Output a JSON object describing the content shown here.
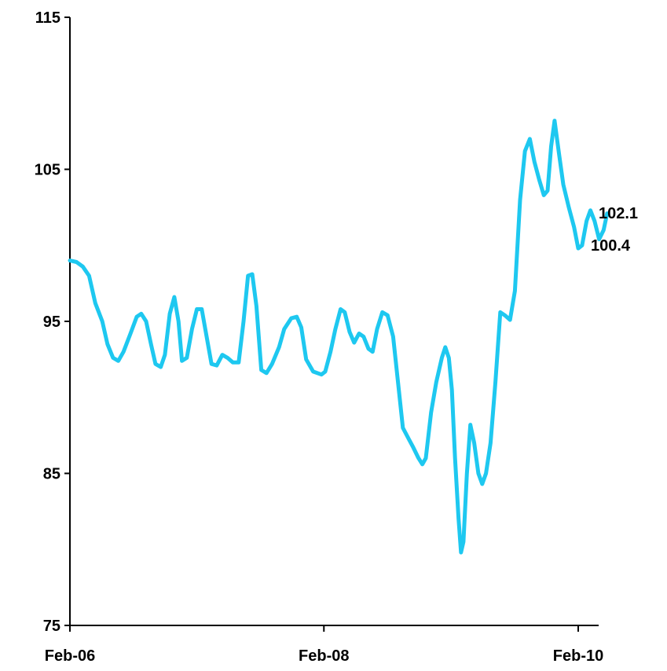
{
  "chart_data": {
    "type": "line",
    "title": "",
    "xlabel": "",
    "ylabel": "",
    "ylim": [
      75,
      115
    ],
    "xlim": [
      "2006-02",
      "2010-02"
    ],
    "y_ticks": [
      "115",
      "105",
      "95",
      "85",
      "75"
    ],
    "x_ticks": [
      "Feb-06",
      "Feb-08",
      "Feb-10"
    ],
    "grid": false,
    "legend": "none",
    "series_color": "#1EC8F0",
    "series": [
      {
        "values": [
          [
            "2006-02-01",
            99.0
          ],
          [
            "2006-02-20",
            98.9
          ],
          [
            "2006-03-10",
            98.6
          ],
          [
            "2006-03-28",
            98.0
          ],
          [
            "2006-04-15",
            96.2
          ],
          [
            "2006-05-05",
            95.0
          ],
          [
            "2006-05-20",
            93.5
          ],
          [
            "2006-06-05",
            92.6
          ],
          [
            "2006-06-20",
            92.4
          ],
          [
            "2006-07-05",
            93.0
          ],
          [
            "2006-07-25",
            94.2
          ],
          [
            "2006-08-12",
            95.3
          ],
          [
            "2006-08-25",
            95.5
          ],
          [
            "2006-09-08",
            95.0
          ],
          [
            "2006-09-22",
            93.5
          ],
          [
            "2006-10-05",
            92.2
          ],
          [
            "2006-10-20",
            92.0
          ],
          [
            "2006-11-01",
            92.8
          ],
          [
            "2006-11-15",
            95.5
          ],
          [
            "2006-11-28",
            96.6
          ],
          [
            "2006-12-10",
            95.0
          ],
          [
            "2006-12-20",
            92.4
          ],
          [
            "2007-01-03",
            92.6
          ],
          [
            "2007-01-18",
            94.5
          ],
          [
            "2007-02-01",
            95.8
          ],
          [
            "2007-02-15",
            95.8
          ],
          [
            "2007-03-01",
            94.0
          ],
          [
            "2007-03-15",
            92.2
          ],
          [
            "2007-03-30",
            92.1
          ],
          [
            "2007-04-15",
            92.8
          ],
          [
            "2007-04-30",
            92.6
          ],
          [
            "2007-05-15",
            92.3
          ],
          [
            "2007-06-01",
            92.3
          ],
          [
            "2007-06-15",
            95.0
          ],
          [
            "2007-06-28",
            98.0
          ],
          [
            "2007-07-10",
            98.1
          ],
          [
            "2007-07-22",
            96.0
          ],
          [
            "2007-08-05",
            91.8
          ],
          [
            "2007-08-20",
            91.6
          ],
          [
            "2007-09-05",
            92.2
          ],
          [
            "2007-09-25",
            93.3
          ],
          [
            "2007-10-10",
            94.5
          ],
          [
            "2007-10-30",
            95.2
          ],
          [
            "2007-11-15",
            95.3
          ],
          [
            "2007-11-28",
            94.6
          ],
          [
            "2007-12-12",
            92.5
          ],
          [
            "2008-01-01",
            91.7
          ],
          [
            "2008-01-25",
            91.5
          ],
          [
            "2008-02-05",
            91.7
          ],
          [
            "2008-02-20",
            93.0
          ],
          [
            "2008-03-05",
            94.5
          ],
          [
            "2008-03-20",
            95.8
          ],
          [
            "2008-04-01",
            95.6
          ],
          [
            "2008-04-15",
            94.3
          ],
          [
            "2008-04-28",
            93.6
          ],
          [
            "2008-05-12",
            94.2
          ],
          [
            "2008-05-25",
            94.0
          ],
          [
            "2008-06-08",
            93.2
          ],
          [
            "2008-06-20",
            93.0
          ],
          [
            "2008-07-03",
            94.5
          ],
          [
            "2008-07-18",
            95.6
          ],
          [
            "2008-08-02",
            95.4
          ],
          [
            "2008-08-18",
            94.0
          ],
          [
            "2008-09-01",
            91.0
          ],
          [
            "2008-09-15",
            88.0
          ],
          [
            "2008-10-01",
            87.3
          ],
          [
            "2008-10-15",
            86.7
          ],
          [
            "2008-10-30",
            86.0
          ],
          [
            "2008-11-10",
            85.6
          ],
          [
            "2008-11-20",
            86.0
          ],
          [
            "2008-12-05",
            89.0
          ],
          [
            "2008-12-20",
            91.0
          ],
          [
            "2009-01-05",
            92.6
          ],
          [
            "2009-01-15",
            93.3
          ],
          [
            "2009-01-25",
            92.6
          ],
          [
            "2009-02-03",
            90.5
          ],
          [
            "2009-02-12",
            86.0
          ],
          [
            "2009-02-22",
            82.0
          ],
          [
            "2009-03-01",
            79.8
          ],
          [
            "2009-03-08",
            80.5
          ],
          [
            "2009-03-18",
            85.0
          ],
          [
            "2009-03-28",
            88.2
          ],
          [
            "2009-04-08",
            87.0
          ],
          [
            "2009-04-20",
            85.0
          ],
          [
            "2009-05-01",
            84.3
          ],
          [
            "2009-05-12",
            85.0
          ],
          [
            "2009-05-25",
            87.0
          ],
          [
            "2009-06-08",
            91.0
          ],
          [
            "2009-06-22",
            95.6
          ],
          [
            "2009-07-05",
            95.4
          ],
          [
            "2009-07-20",
            95.1
          ],
          [
            "2009-08-03",
            97.0
          ],
          [
            "2009-08-18",
            103.0
          ],
          [
            "2009-09-01",
            106.2
          ],
          [
            "2009-09-15",
            107.0
          ],
          [
            "2009-09-28",
            105.5
          ],
          [
            "2009-10-12",
            104.3
          ],
          [
            "2009-10-25",
            103.3
          ],
          [
            "2009-11-05",
            103.6
          ],
          [
            "2009-11-15",
            106.5
          ],
          [
            "2009-11-25",
            108.2
          ],
          [
            "2009-12-08",
            106.0
          ],
          [
            "2009-12-20",
            104.0
          ],
          [
            "2010-01-05",
            102.5
          ],
          [
            "2010-01-20",
            101.2
          ],
          [
            "2010-02-01",
            99.8
          ],
          [
            "2010-02-12",
            100.0
          ],
          [
            "2010-02-25",
            101.6
          ],
          [
            "2010-03-08",
            102.3
          ],
          [
            "2010-03-20",
            101.6
          ],
          [
            "2010-04-02",
            100.4
          ],
          [
            "2010-04-15",
            101.0
          ],
          [
            "2010-04-25",
            102.1
          ]
        ]
      }
    ],
    "annotations": [
      "102.1",
      "100.4"
    ]
  }
}
